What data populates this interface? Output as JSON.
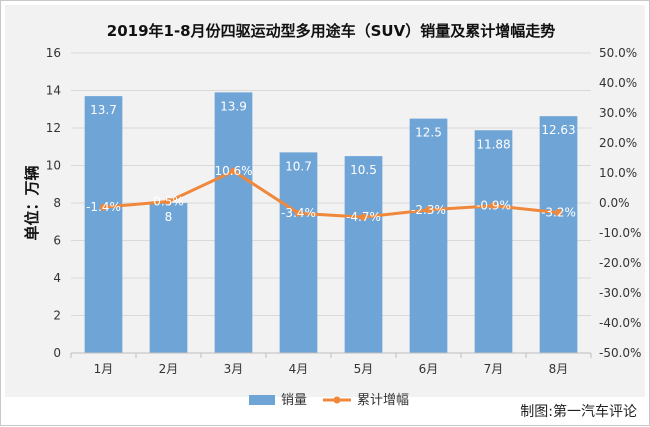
{
  "credit": "制图:第一汽车评论",
  "chart_data": {
    "type": "bar",
    "title": "2019年1-8月份四驱运动型多用途车（SUV）销量及累计增幅走势",
    "ylabel": "单位：万辆",
    "categories": [
      "1月",
      "2月",
      "3月",
      "4月",
      "5月",
      "6月",
      "7月",
      "8月"
    ],
    "ylim": [
      0,
      16
    ],
    "y_ticks": [
      "0",
      "2",
      "4",
      "6",
      "8",
      "10",
      "12",
      "14",
      "16"
    ],
    "y2lim": [
      -50,
      50
    ],
    "y2_ticks": [
      "-50.0%",
      "-40.0%",
      "-30.0%",
      "-20.0%",
      "-10.0%",
      "0.0%",
      "10.0%",
      "20.0%",
      "30.0%",
      "40.0%",
      "50.0%"
    ],
    "legend_position": "bottom",
    "series": [
      {
        "name": "销量",
        "type": "bar",
        "axis": "left",
        "color": "#6fa4d6",
        "values": [
          13.7,
          8,
          13.9,
          10.7,
          10.5,
          12.5,
          11.88,
          12.63
        ],
        "labels": [
          "13.7",
          "8",
          "13.9",
          "10.7",
          "10.5",
          "12.5",
          "11.88",
          "12.63"
        ]
      },
      {
        "name": "累计增幅",
        "type": "line",
        "axis": "right",
        "color": "#f0883c",
        "values": [
          -1.4,
          0.5,
          10.6,
          -3.4,
          -4.7,
          -2.3,
          -0.9,
          -3.2
        ],
        "labels": [
          "-1.4%",
          "0.5%",
          "10.6%",
          "-3.4%",
          "-4.7%",
          "-2.3%",
          "-0.9%",
          "-3.2%"
        ]
      }
    ]
  }
}
